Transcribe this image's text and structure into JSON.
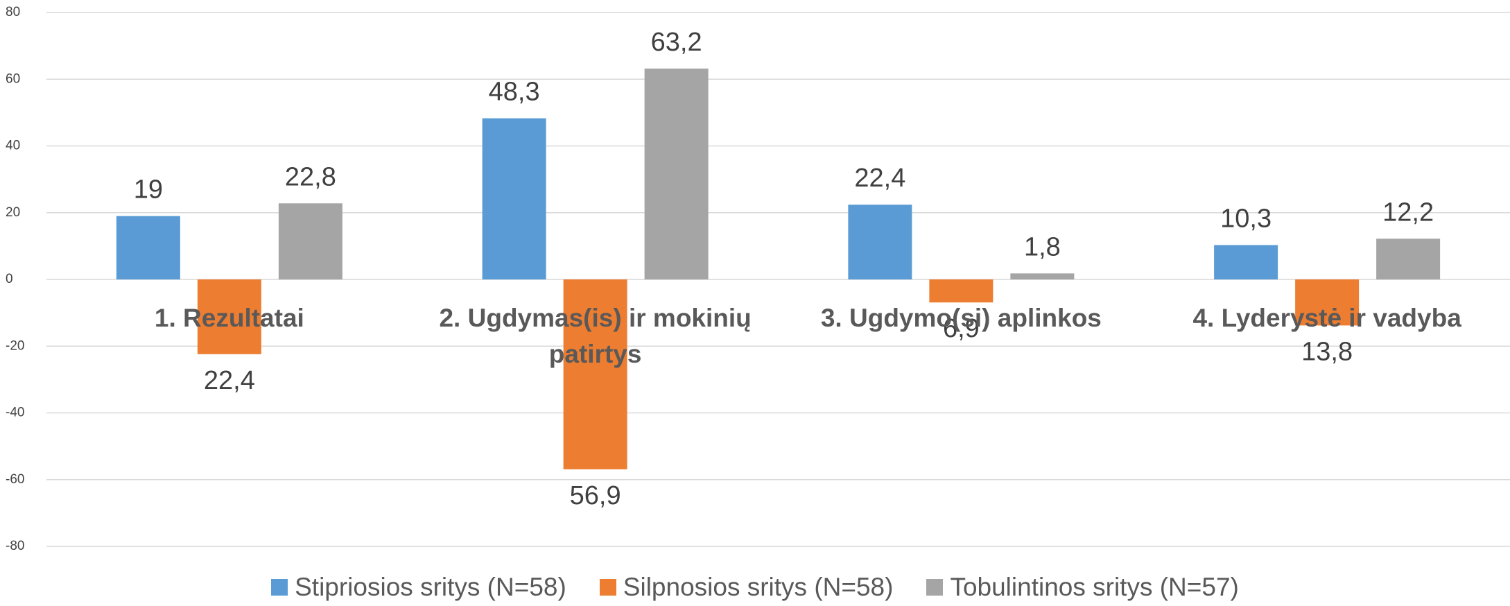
{
  "chart_data": {
    "type": "bar",
    "categories": [
      "1. Rezultatai",
      "2. Ugdymas(is) ir mokinių patirtys",
      "3. Ugdymo(si) aplinkos",
      "4. Lyderystė ir vadyba"
    ],
    "series": [
      {
        "name": "Stipriosios sritys (N=58)",
        "color": "#5b9bd5",
        "values": [
          19,
          48.3,
          22.4,
          10.3
        ],
        "value_labels": [
          "19",
          "48,3",
          "22,4",
          "10,3"
        ]
      },
      {
        "name": "Silpnosios sritys (N=58)",
        "color": "#ed7d31",
        "values": [
          -22.4,
          -56.9,
          -6.9,
          -13.8
        ],
        "value_labels": [
          "22,4",
          "56,9",
          "6,9",
          "13,8"
        ]
      },
      {
        "name": "Tobulintinos sritys (N=57)",
        "color": "#a5a5a5",
        "values": [
          22.8,
          63.2,
          1.8,
          12.2
        ],
        "value_labels": [
          "22,8",
          "63,2",
          "1,8",
          "12,2"
        ]
      }
    ],
    "ylim": [
      -80,
      80
    ],
    "yticks": [
      -80,
      -60,
      -40,
      -20,
      0,
      20,
      40,
      60,
      80
    ],
    "grid": true,
    "legend": "bottom"
  }
}
